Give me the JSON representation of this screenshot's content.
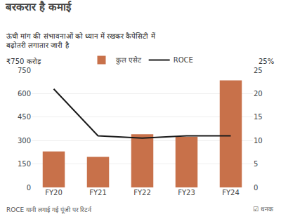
{
  "chart_data": {
    "type": "bar",
    "title": "बरकरार है कमाई",
    "subtitle": "ऊंची मांग की संभावनाओं को ध्यान में रखकर कैपेसिटी में\nबढ़ोतरी लगातार जारी है",
    "categories": [
      "FY20",
      "FY21",
      "FY22",
      "FY23",
      "FY24"
    ],
    "series": [
      {
        "name": "कुल एसेट",
        "type": "bar",
        "color": "#C8714A",
        "values": [
          230,
          195,
          340,
          325,
          685
        ]
      },
      {
        "name": "ROCE",
        "type": "line",
        "color": "#1a1a1a",
        "axis": "y2",
        "values": [
          21.0,
          11.0,
          10.5,
          11.0,
          11.0
        ]
      }
    ],
    "ylabel": "₹750 करोड़",
    "y2label": "25%",
    "ylim": [
      0,
      750
    ],
    "yticks": [
      0,
      150,
      300,
      450,
      600,
      750
    ],
    "y2lim": [
      0,
      25
    ],
    "y2ticks": [
      0,
      5,
      10,
      15,
      20,
      25
    ],
    "annotations": [
      "ROCE यानी लगाई गई पूंजी पर रिटर्न",
      "☑ धनक"
    ],
    "grid": true,
    "legend": "top"
  }
}
